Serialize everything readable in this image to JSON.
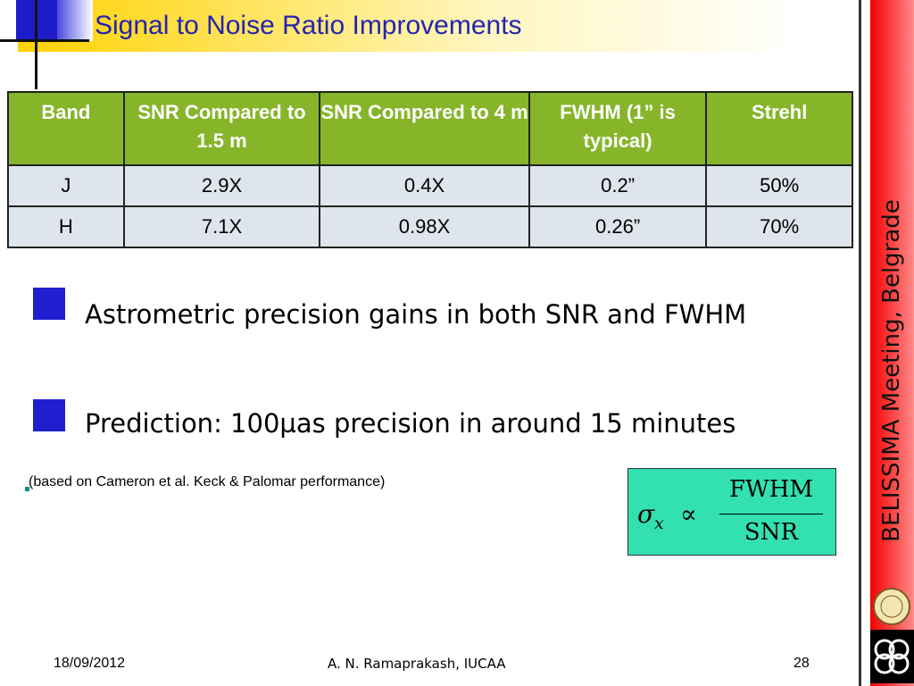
{
  "title": "Signal to Noise Ratio Improvements",
  "table": {
    "header": [
      "Band",
      "SNR Compared to 1.5 m",
      "SNR Compared to 4 m",
      "FWHM (1” is typical)",
      "Strehl"
    ],
    "rows": [
      [
        "J",
        "2.9X",
        "0.4X",
        "0.2”",
        "50%"
      ],
      [
        "H",
        "7.1X",
        "0.98X",
        "0.26”",
        "70%"
      ]
    ]
  },
  "bullets": [
    "Astrometric precision gains in both SNR and FWHM",
    "Prediction: 100µas precision in around 15 minutes"
  ],
  "note": "(based on Cameron et al. Keck & Palomar performance)",
  "formula": {
    "lhs": "σ",
    "subscript": "x",
    "relation": "∝",
    "numerator": "FWHM",
    "denominator": "SNR"
  },
  "sidebar": "BELISSIMA Meeting, Belgrade",
  "footer": {
    "date": "18/09/2012",
    "author": "A. N. Ramaprakash, IUCAA",
    "page": "28"
  }
}
